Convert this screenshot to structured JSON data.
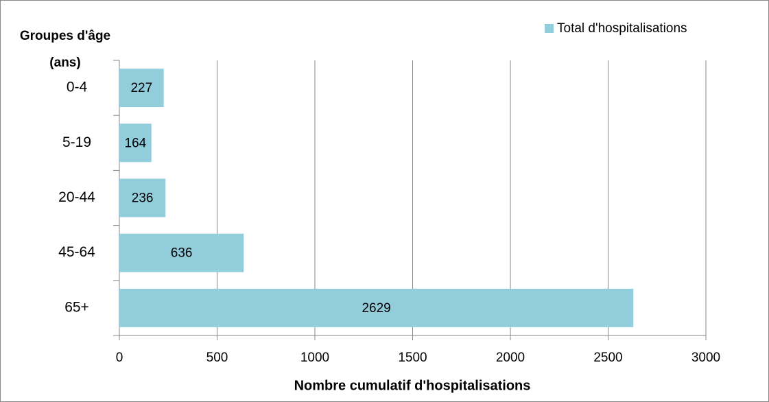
{
  "chart_data": {
    "type": "bar",
    "orientation": "horizontal",
    "y_label": "Groupes d'âge (ans)",
    "x_label": "Nombre cumulatif d'hospitalisations",
    "categories": [
      "0-4",
      "5-19",
      "20-44",
      "45-64",
      "65+"
    ],
    "series": [
      {
        "name": "Total d'hospitalisations",
        "color": "#92cddc",
        "values": [
          227,
          164,
          236,
          636,
          2629
        ]
      }
    ],
    "xlim": [
      0,
      3000
    ],
    "xticks": [
      0,
      500,
      1000,
      1500,
      2000,
      2500,
      3000
    ],
    "grid": true,
    "legend": "top-right",
    "data_labels": true
  }
}
